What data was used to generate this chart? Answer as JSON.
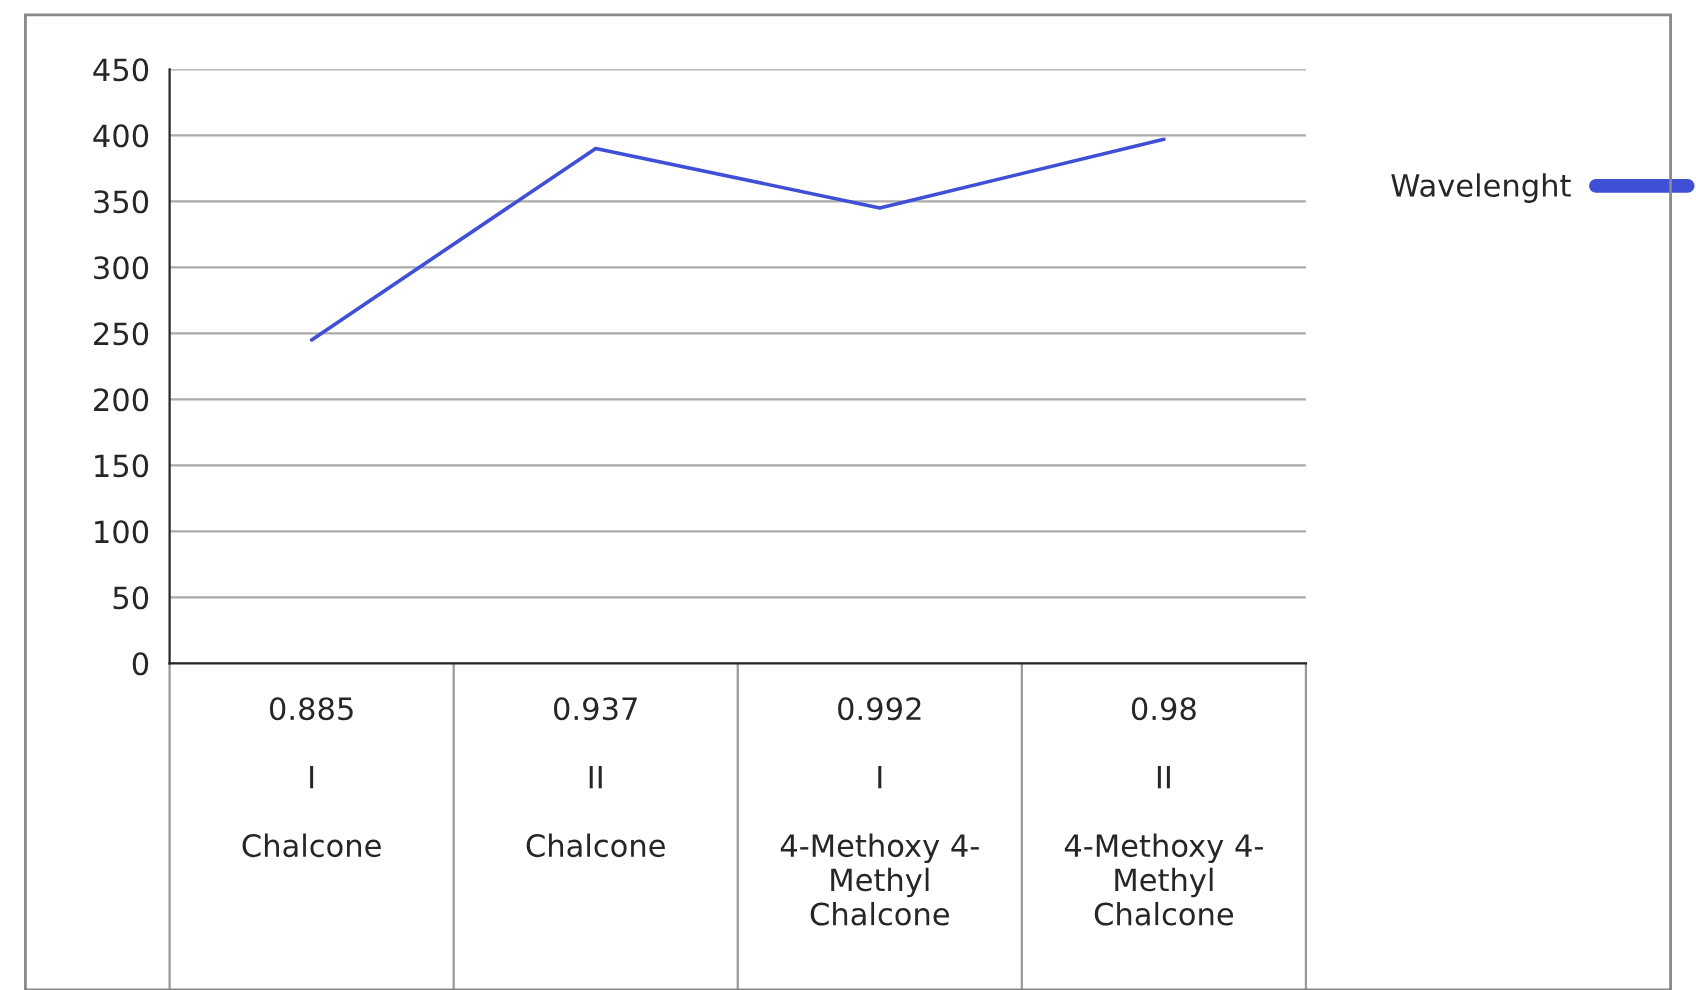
{
  "chart_data": {
    "type": "line",
    "categories": [
      "0.885\n\nI\n\nChalcone",
      "0.937\n\nII\n\nChalcone",
      "0.992\n\nI\n\n4-Methoxy 4-\nMethyl\nChalcone",
      "0.98\n\nII\n\n4-Methoxy 4-\nMethyl\nChalcone"
    ],
    "series": [
      {
        "name": "Wavelenght",
        "color": "#3f4fd6",
        "values": [
          245,
          390,
          345,
          397
        ]
      }
    ],
    "ylim": [
      0,
      450
    ],
    "yticks": [
      0,
      50,
      100,
      150,
      200,
      250,
      300,
      350,
      400,
      450
    ],
    "grid": "y",
    "legend": "right",
    "marker": "none"
  }
}
